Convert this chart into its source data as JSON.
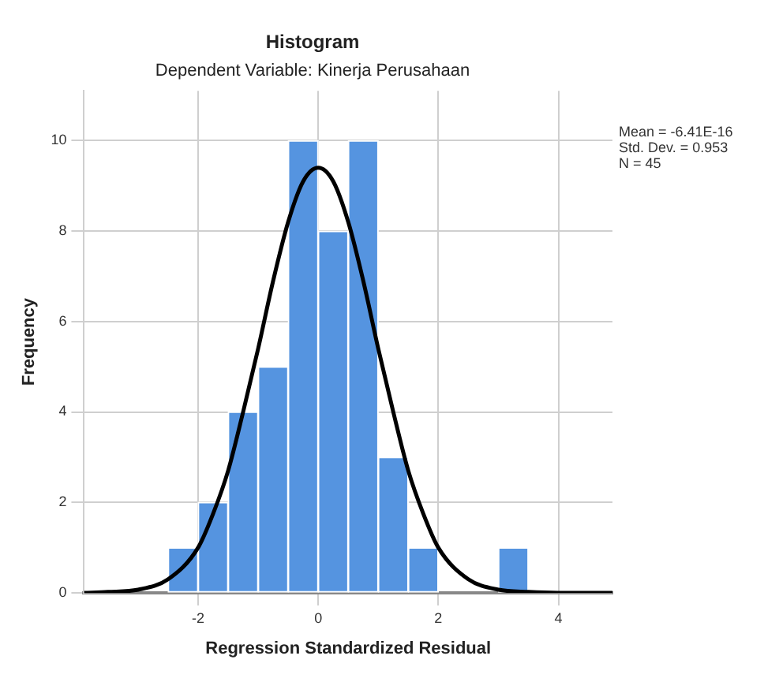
{
  "chart_data": {
    "type": "histogram",
    "title": "Histogram",
    "subtitle": "Dependent Variable: Kinerja Perusahaan",
    "xlabel": "Regression Standardized Residual",
    "ylabel": "Frequency",
    "series": [
      {
        "type": "histogram",
        "color": "#5594e0",
        "bins": [
          -2.5,
          -2,
          -1.5,
          -1,
          -0.5,
          0,
          0.5,
          1,
          1.5,
          2,
          2.5,
          3,
          3.5
        ],
        "values": [
          1,
          2,
          4,
          5,
          10,
          8,
          10,
          3,
          1,
          0,
          0,
          1
        ]
      },
      {
        "type": "line",
        "color": "#000000",
        "x": [
          -3.9,
          -3.5,
          -3,
          -2.5,
          -2,
          -1.75,
          -1.5,
          -1.25,
          -1,
          -0.75,
          -0.5,
          -0.25,
          0,
          0.25,
          0.5,
          0.75,
          1,
          1.25,
          1.5,
          1.75,
          2,
          2.5,
          3,
          3.5,
          4,
          4.9
        ],
        "values": [
          0,
          0.02,
          0.07,
          0.3,
          1,
          1.75,
          2.7,
          4,
          5.4,
          6.9,
          8.2,
          9.1,
          9.4,
          9.1,
          8.2,
          6.9,
          5.4,
          4,
          2.7,
          1.75,
          1,
          0.3,
          0.07,
          0.02,
          0,
          0
        ]
      }
    ],
    "xlim": [
      -3.9,
      4.9
    ],
    "xticks": [
      -2,
      0,
      2,
      4
    ],
    "ylim": [
      0,
      11.1
    ],
    "yticks": [
      0,
      2,
      4,
      6,
      8,
      10
    ],
    "grid": true,
    "annotations": [
      "Mean = -6.41E-16",
      "Std. Dev. = 0.953",
      "N = 45"
    ]
  }
}
